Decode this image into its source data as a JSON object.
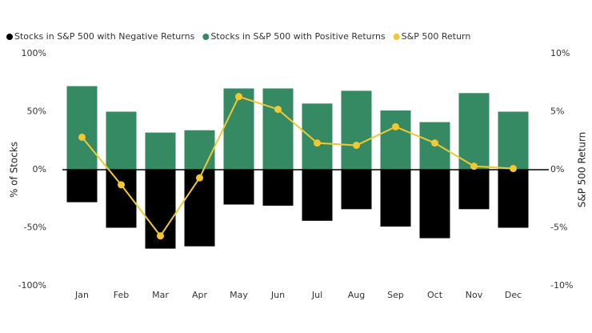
{
  "chart_data": {
    "type": "bar",
    "categories": [
      "Jan",
      "Feb",
      "Mar",
      "Apr",
      "May",
      "Jun",
      "Jul",
      "Aug",
      "Sep",
      "Oct",
      "Nov",
      "Dec"
    ],
    "y_label": "% of Stocks",
    "y2_label": "S&P 500 Return",
    "ylim": [
      -100,
      100
    ],
    "yticks": [
      {
        "value": -100,
        "label": "-100%"
      },
      {
        "value": -50,
        "label": "-50%"
      },
      {
        "value": 0,
        "label": "0%"
      },
      {
        "value": 50,
        "label": "50%"
      },
      {
        "value": 100,
        "label": "100%"
      }
    ],
    "y2lim": [
      -10,
      10
    ],
    "y2ticks": [
      {
        "value": -10,
        "label": "-10%"
      },
      {
        "value": -5,
        "label": "-5%"
      },
      {
        "value": 0,
        "label": "0%"
      },
      {
        "value": 5,
        "label": "5%"
      },
      {
        "value": 10,
        "label": "10%"
      }
    ],
    "series": [
      {
        "name": "Stocks in S&P 500 with Negative Returns",
        "type": "bar",
        "color": "#000000",
        "values": [
          -28,
          -50,
          -68,
          -66,
          -30,
          -31,
          -44,
          -34,
          -49,
          -59,
          -34,
          -50
        ]
      },
      {
        "name": "Stocks in S&P 500 with Positive Returns",
        "type": "bar",
        "color": "#358a63",
        "values": [
          72,
          50,
          32,
          34,
          70,
          70,
          57,
          68,
          51,
          41,
          66,
          50
        ]
      },
      {
        "name": "S&P 500 Return",
        "type": "line",
        "axis": "y2",
        "color": "#f2c832",
        "values": [
          2.8,
          -1.3,
          -5.7,
          -0.7,
          6.3,
          5.2,
          2.3,
          2.1,
          3.7,
          2.3,
          0.3,
          0.1
        ]
      }
    ],
    "legend": "top-left"
  }
}
